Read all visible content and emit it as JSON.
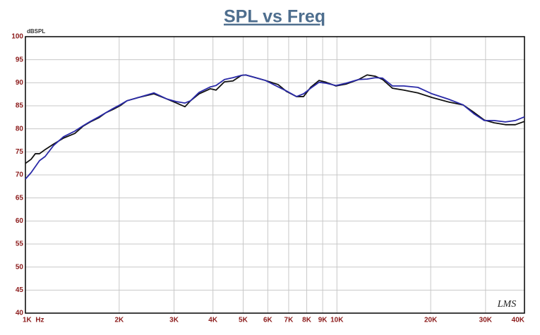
{
  "chart_data": {
    "type": "line",
    "title": "SPL vs Freq",
    "y_label": "dBSPL",
    "watermark": "LMS",
    "x": [
      1000,
      1043,
      1076,
      1110,
      1157,
      1232,
      1326,
      1441,
      1534,
      1616,
      1720,
      1813,
      1910,
      2012,
      2120,
      2305,
      2585,
      2840,
      3054,
      3252,
      3390,
      3610,
      3924,
      4091,
      4355,
      4637,
      4935,
      5093,
      5479,
      5893,
      6475,
      6893,
      7417,
      7814,
      8233,
      8763,
      9234,
      9931,
      10690,
      11740,
      12500,
      13300,
      14020,
      15080,
      16390,
      18190,
      20200,
      22890,
      25410,
      27620,
      29720,
      31960,
      34750,
      37380,
      40000
    ],
    "series": [
      {
        "color": "#111111",
        "values": [
          72.5,
          73.4,
          74.6,
          74.6,
          75.5,
          76.7,
          78.0,
          79.0,
          80.6,
          81.5,
          82.4,
          83.5,
          84.2,
          85.0,
          86.1,
          86.8,
          87.6,
          86.5,
          85.6,
          84.8,
          86.1,
          87.6,
          88.7,
          88.4,
          90.2,
          90.4,
          91.6,
          91.7,
          91.1,
          90.5,
          89.6,
          88.1,
          87.0,
          87.0,
          89.0,
          90.5,
          90.1,
          89.3,
          89.7,
          90.7,
          91.7,
          91.4,
          90.7,
          88.8,
          88.4,
          87.8,
          86.8,
          85.8,
          85.2,
          83.5,
          81.9,
          81.3,
          80.9,
          80.9,
          81.6
        ]
      },
      {
        "color": "#2a2aa8",
        "values": [
          69.1,
          70.5,
          71.8,
          73.1,
          74.0,
          76.4,
          78.3,
          79.5,
          80.7,
          81.6,
          82.6,
          83.5,
          84.4,
          85.2,
          86.1,
          86.8,
          87.8,
          86.5,
          85.9,
          85.6,
          86.1,
          87.9,
          89.1,
          89.4,
          90.7,
          91.1,
          91.6,
          91.7,
          91.1,
          90.5,
          89.1,
          88.2,
          87.0,
          87.6,
          88.8,
          90.1,
          89.9,
          89.4,
          89.9,
          90.7,
          90.8,
          91.1,
          91.0,
          89.3,
          89.3,
          89.0,
          87.6,
          86.4,
          85.2,
          83.2,
          81.8,
          81.8,
          81.5,
          81.8,
          82.6
        ]
      }
    ],
    "xscale": "log",
    "xlim": [
      1000,
      40000
    ],
    "xticks": [
      {
        "value": 1000,
        "label": "1K  Hz"
      },
      {
        "value": 2000,
        "label": "2K"
      },
      {
        "value": 3000,
        "label": "3K"
      },
      {
        "value": 4000,
        "label": "4K"
      },
      {
        "value": 5000,
        "label": "5K"
      },
      {
        "value": 6000,
        "label": "6K"
      },
      {
        "value": 7000,
        "label": "7K"
      },
      {
        "value": 8000,
        "label": "8K"
      },
      {
        "value": 9000,
        "label": "9K"
      },
      {
        "value": 10000,
        "label": "10K"
      },
      {
        "value": 20000,
        "label": "20K"
      },
      {
        "value": 30000,
        "label": "30K"
      },
      {
        "value": 40000,
        "label": "40K"
      }
    ],
    "ylim": [
      40,
      100
    ],
    "yticks": [
      40,
      45,
      50,
      55,
      60,
      65,
      70,
      75,
      80,
      85,
      90,
      95,
      100
    ],
    "grid": true
  }
}
